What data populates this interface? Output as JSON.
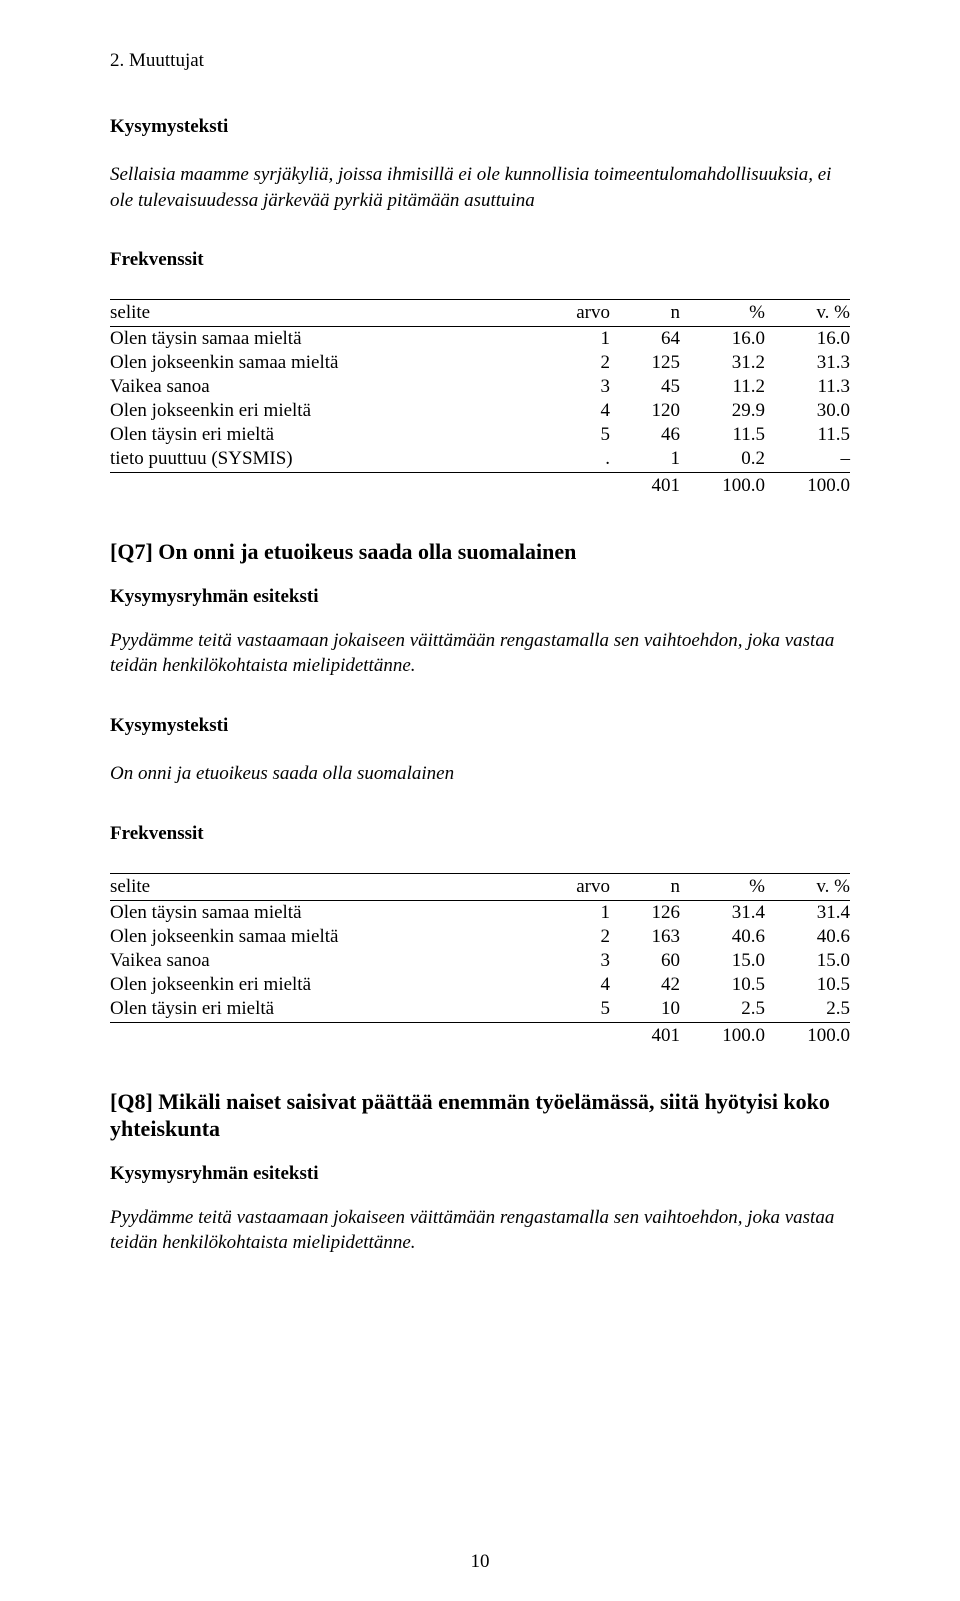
{
  "header": "2. Muuttujat",
  "labels": {
    "kysymysteksti": "Kysymysteksti",
    "frekvenssit": "Frekvenssit",
    "kysymysryhma": "Kysymysryhmän esiteksti"
  },
  "columns": {
    "selite": "selite",
    "arvo": "arvo",
    "n": "n",
    "pct": "%",
    "vpct": "v. %"
  },
  "question6": {
    "text": "Sellaisia maamme syrjäkyliä, joissa ihmisillä ei ole kunnollisia toimeentulomahdollisuuksia, ei ole tulevaisuudessa järkevää pyrkiä pitämään asuttuina",
    "rows": [
      {
        "label": "Olen täysin samaa mieltä",
        "arvo": "1",
        "n": "64",
        "p": "16.0",
        "vp": "16.0"
      },
      {
        "label": "Olen jokseenkin samaa mieltä",
        "arvo": "2",
        "n": "125",
        "p": "31.2",
        "vp": "31.3"
      },
      {
        "label": "Vaikea sanoa",
        "arvo": "3",
        "n": "45",
        "p": "11.2",
        "vp": "11.3"
      },
      {
        "label": "Olen jokseenkin eri mieltä",
        "arvo": "4",
        "n": "120",
        "p": "29.9",
        "vp": "30.0"
      },
      {
        "label": "Olen täysin eri mieltä",
        "arvo": "5",
        "n": "46",
        "p": "11.5",
        "vp": "11.5"
      },
      {
        "label": "tieto puuttuu (SYSMIS)",
        "arvo": ".",
        "n": "1",
        "p": "0.2",
        "vp": "–"
      }
    ],
    "total": {
      "n": "401",
      "p": "100.0",
      "vp": "100.0"
    }
  },
  "question7": {
    "heading": "[Q7] On onni ja etuoikeus saada olla suomalainen",
    "pretext": "Pyydämme teitä vastaamaan jokaiseen väittämään rengastamalla sen vaihtoehdon, joka vastaa teidän henkilökohtaista mielipidettänne.",
    "text": "On onni ja etuoikeus saada olla suomalainen",
    "rows": [
      {
        "label": "Olen täysin samaa mieltä",
        "arvo": "1",
        "n": "126",
        "p": "31.4",
        "vp": "31.4"
      },
      {
        "label": "Olen jokseenkin samaa mieltä",
        "arvo": "2",
        "n": "163",
        "p": "40.6",
        "vp": "40.6"
      },
      {
        "label": "Vaikea sanoa",
        "arvo": "3",
        "n": "60",
        "p": "15.0",
        "vp": "15.0"
      },
      {
        "label": "Olen jokseenkin eri mieltä",
        "arvo": "4",
        "n": "42",
        "p": "10.5",
        "vp": "10.5"
      },
      {
        "label": "Olen täysin eri mieltä",
        "arvo": "5",
        "n": "10",
        "p": "2.5",
        "vp": "2.5"
      }
    ],
    "total": {
      "n": "401",
      "p": "100.0",
      "vp": "100.0"
    }
  },
  "question8": {
    "heading": "[Q8] Mikäli naiset saisivat päättää enemmän työelämässä, siitä hyötyisi koko yhteiskunta",
    "pretext": "Pyydämme teitä vastaamaan jokaiseen väittämään rengastamalla sen vaihtoehdon, joka vastaa teidän henkilökohtaista mielipidettänne."
  },
  "pagenum": "10"
}
